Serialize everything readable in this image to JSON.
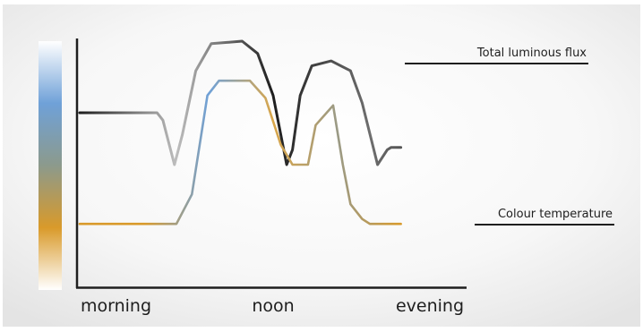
{
  "chart_data": {
    "type": "line",
    "title": "",
    "xlabel": "",
    "ylabel": "",
    "x_tick_labels": [
      "morning",
      "noon",
      "evening"
    ],
    "x_range": [
      0,
      10
    ],
    "y_range": [
      0,
      100
    ],
    "grid": false,
    "legend": "inline-labels-right",
    "color_scale": {
      "orientation": "vertical",
      "stops": [
        "#ffffff",
        "#6fa1d8",
        "#8c9a8c",
        "#d99a2a",
        "#ffffff"
      ]
    },
    "series": [
      {
        "name": "Total luminous flux",
        "color_stops": [
          "#1e1e1e",
          "#bdbdbd",
          "#1e1e1e",
          "#6e6e6e",
          "#1e1e1e"
        ],
        "points": [
          [
            0.0,
            71
          ],
          [
            2.0,
            71
          ],
          [
            2.15,
            68
          ],
          [
            2.45,
            50
          ],
          [
            2.65,
            62
          ],
          [
            3.0,
            88
          ],
          [
            3.4,
            99
          ],
          [
            4.2,
            100
          ],
          [
            4.6,
            95
          ],
          [
            5.0,
            78
          ],
          [
            5.35,
            50
          ],
          [
            5.5,
            56
          ],
          [
            5.7,
            78
          ],
          [
            6.0,
            90
          ],
          [
            6.5,
            92
          ],
          [
            7.0,
            88
          ],
          [
            7.3,
            75
          ],
          [
            7.7,
            50
          ],
          [
            7.95,
            56
          ],
          [
            8.05,
            57
          ],
          [
            8.3,
            57
          ]
        ]
      },
      {
        "name": "Colour temperature",
        "color_stops": [
          "#d99a2a",
          "#d99a2a",
          "#6fa1d8",
          "#d9a64a",
          "#9a9a86",
          "#d99a2a",
          "#d99a2a"
        ],
        "points": [
          [
            0.0,
            26
          ],
          [
            2.5,
            26
          ],
          [
            2.9,
            38
          ],
          [
            3.3,
            78
          ],
          [
            3.6,
            84
          ],
          [
            4.4,
            84
          ],
          [
            4.8,
            77
          ],
          [
            5.2,
            58
          ],
          [
            5.5,
            50
          ],
          [
            5.9,
            50
          ],
          [
            6.1,
            66
          ],
          [
            6.55,
            74
          ],
          [
            6.8,
            50
          ],
          [
            7.0,
            34
          ],
          [
            7.3,
            28
          ],
          [
            7.5,
            26
          ],
          [
            8.3,
            26
          ]
        ]
      }
    ]
  }
}
